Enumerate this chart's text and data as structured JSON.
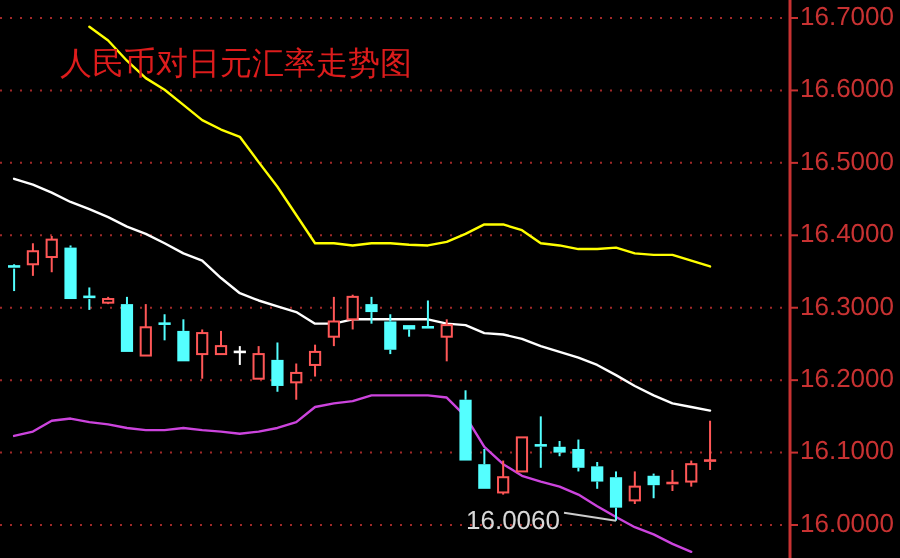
{
  "chart_data": {
    "type": "candlestick",
    "title": "人民币对日元汇率走势图",
    "categories": [
      null,
      null,
      null,
      null,
      null,
      null,
      null,
      null,
      null,
      null,
      null,
      null,
      null,
      null,
      null,
      null,
      null,
      null,
      null,
      null,
      null,
      null,
      null,
      null,
      null,
      null,
      null,
      null,
      null,
      null,
      null,
      null,
      null,
      null,
      null,
      null,
      null,
      null
    ],
    "ohlc": [
      [
        16.357,
        16.36,
        16.323,
        16.354
      ],
      [
        16.36,
        16.389,
        16.344,
        16.378
      ],
      [
        16.37,
        16.399,
        16.349,
        16.394
      ],
      [
        16.383,
        16.386,
        16.312,
        16.312
      ],
      [
        16.315,
        16.328,
        16.297,
        16.312
      ],
      [
        16.307,
        16.315,
        16.305,
        16.312
      ],
      [
        16.305,
        16.315,
        16.239,
        16.239
      ],
      [
        16.234,
        16.305,
        16.234,
        16.273
      ],
      [
        16.278,
        16.291,
        16.255,
        16.276
      ],
      [
        16.268,
        16.284,
        16.226,
        16.226
      ],
      [
        16.236,
        16.27,
        16.202,
        16.265
      ],
      [
        16.236,
        16.268,
        16.236,
        16.247
      ],
      [
        16.239,
        16.247,
        16.221,
        16.239
      ],
      [
        16.202,
        16.247,
        16.202,
        16.236
      ],
      [
        16.228,
        16.252,
        16.184,
        16.192
      ],
      [
        16.197,
        16.223,
        16.173,
        16.21
      ],
      [
        16.221,
        16.249,
        16.205,
        16.239
      ],
      [
        16.26,
        16.315,
        16.247,
        16.281
      ],
      [
        16.284,
        16.318,
        16.27,
        16.315
      ],
      [
        16.305,
        16.315,
        16.278,
        16.294
      ],
      [
        16.281,
        16.291,
        16.236,
        16.242
      ],
      [
        16.276,
        16.276,
        16.26,
        16.27
      ],
      [
        16.273,
        16.31,
        16.27,
        16.27
      ],
      [
        16.26,
        16.284,
        16.226,
        16.276
      ],
      [
        16.173,
        16.186,
        16.089,
        16.089
      ],
      [
        16.084,
        16.105,
        16.05,
        16.05
      ],
      [
        16.045,
        16.089,
        16.042,
        16.066
      ],
      [
        16.074,
        16.121,
        16.074,
        16.121
      ],
      [
        16.11,
        16.15,
        16.079,
        16.108
      ],
      [
        16.108,
        16.116,
        16.095,
        16.1
      ],
      [
        16.105,
        16.118,
        16.074,
        16.079
      ],
      [
        16.081,
        16.087,
        16.05,
        16.06
      ],
      [
        16.066,
        16.074,
        16.006,
        16.024
      ],
      [
        16.034,
        16.074,
        16.029,
        16.053
      ],
      [
        16.068,
        16.071,
        16.037,
        16.055
      ],
      [
        16.055,
        16.076,
        16.047,
        16.058
      ],
      [
        16.06,
        16.089,
        16.053,
        16.084
      ],
      [
        16.087,
        16.144,
        16.076,
        16.089
      ]
    ],
    "colors": [
      "#54ffff",
      "#ff5757",
      "#ff5757",
      "#54ffff",
      "#54ffff",
      "#ff5757",
      "#54ffff",
      "#ff5757",
      "#54ffff",
      "#54ffff",
      "#ff5757",
      "#ff5757",
      "#ffffff",
      "#ff5757",
      "#54ffff",
      "#ff5757",
      "#ff5757",
      "#ff5757",
      "#ff5757",
      "#54ffff",
      "#54ffff",
      "#54ffff",
      "#54ffff",
      "#ff5757",
      "#54ffff",
      "#54ffff",
      "#ff5757",
      "#ff5757",
      "#54ffff",
      "#54ffff",
      "#54ffff",
      "#54ffff",
      "#54ffff",
      "#ff5757",
      "#54ffff",
      "#ff5757",
      "#ff5757",
      "#ff5757"
    ],
    "series": [
      {
        "type": "line",
        "color": "#ffff00",
        "values": [
          null,
          null,
          null,
          null,
          16.688,
          16.669,
          16.641,
          16.617,
          16.601,
          16.58,
          16.559,
          16.546,
          16.536,
          16.501,
          16.467,
          16.428,
          16.389,
          16.389,
          16.386,
          16.389,
          16.389,
          16.387,
          16.386,
          16.391,
          16.402,
          16.415,
          16.415,
          16.407,
          16.389,
          16.386,
          16.381,
          16.381,
          16.383,
          16.375,
          16.373,
          16.373,
          16.365,
          16.357
        ]
      },
      {
        "type": "line",
        "color": "#ffffff",
        "values": [
          16.478,
          16.47,
          16.459,
          16.446,
          16.436,
          16.425,
          16.412,
          16.402,
          16.389,
          16.375,
          16.365,
          16.341,
          16.32,
          16.31,
          16.302,
          16.294,
          16.278,
          16.278,
          16.284,
          16.284,
          16.284,
          16.284,
          16.284,
          16.278,
          16.276,
          16.265,
          16.263,
          16.257,
          16.247,
          16.239,
          16.231,
          16.221,
          16.207,
          16.192,
          16.179,
          16.168,
          16.163,
          16.158
        ]
      },
      {
        "type": "line",
        "color": "#cc44dd",
        "values": [
          16.123,
          16.129,
          16.144,
          16.147,
          16.142,
          16.139,
          16.134,
          16.131,
          16.131,
          16.134,
          16.131,
          16.129,
          16.126,
          16.129,
          16.134,
          16.142,
          16.163,
          16.168,
          16.171,
          16.179,
          16.179,
          16.179,
          16.179,
          16.176,
          16.15,
          16.108,
          16.084,
          16.068,
          16.06,
          16.053,
          16.042,
          16.026,
          16.011,
          15.997,
          15.987,
          15.974,
          15.963,
          null
        ]
      }
    ],
    "ylim": [
      15.96,
      16.7
    ],
    "yticks": [
      {
        "value": 16.0,
        "label": "16.0000"
      },
      {
        "value": 16.1,
        "label": "16.1000"
      },
      {
        "value": 16.2,
        "label": "16.2000"
      },
      {
        "value": 16.3,
        "label": "16.3000"
      },
      {
        "value": 16.4,
        "label": "16.4000"
      },
      {
        "value": 16.5,
        "label": "16.5000"
      },
      {
        "value": 16.6,
        "label": "16.6000"
      },
      {
        "value": 16.7,
        "label": "16.7000"
      }
    ],
    "tick_labels": "y",
    "grid": "y",
    "annotations": [
      "16.0060"
    ]
  }
}
